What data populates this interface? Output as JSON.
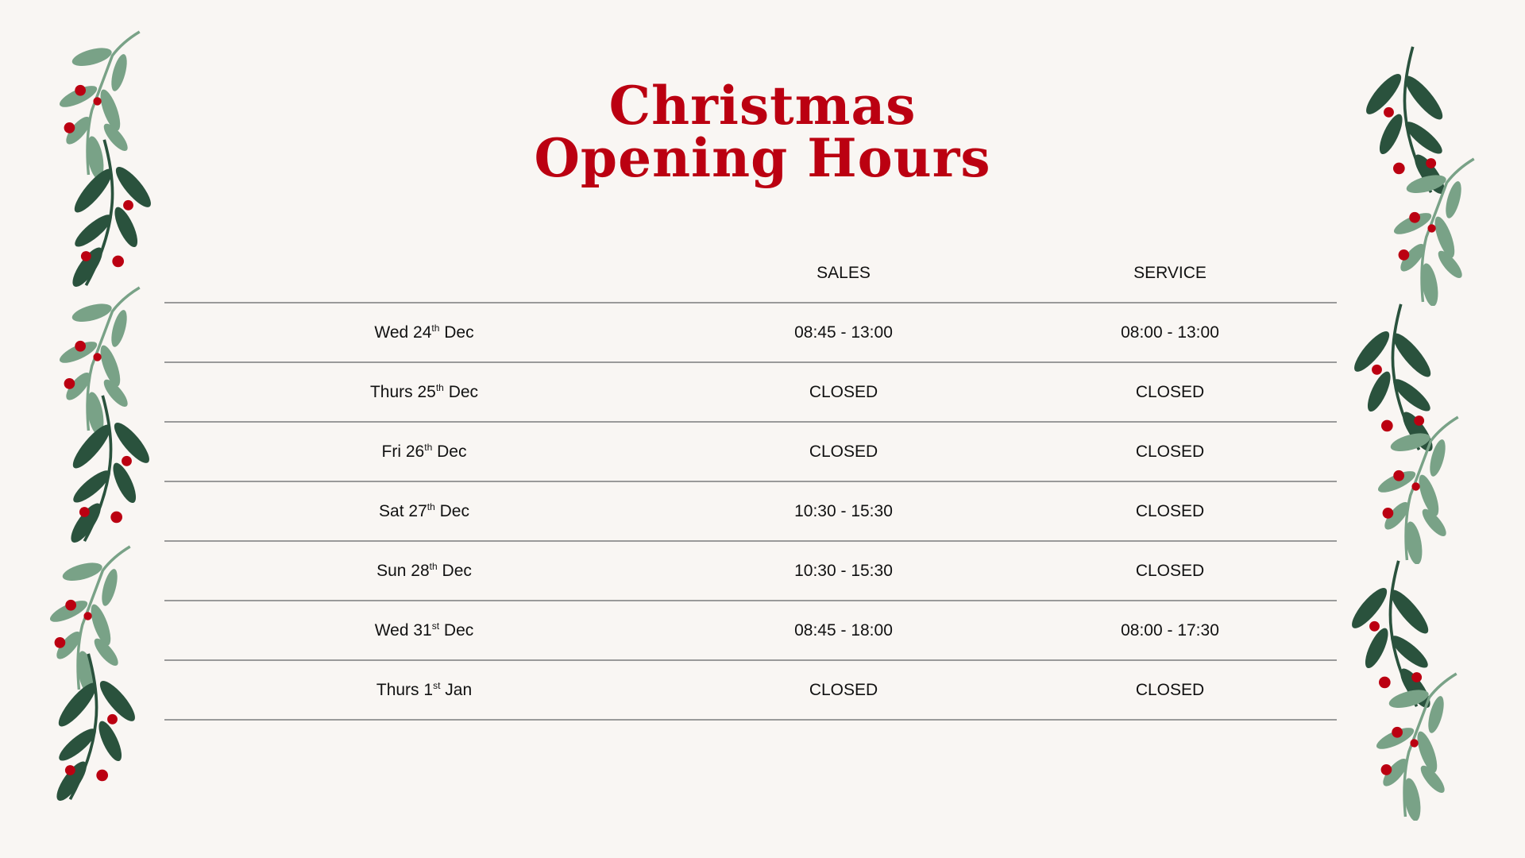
{
  "title": {
    "line1": "Christmas",
    "line2": "Opening Hours",
    "color": "#bb0011"
  },
  "table": {
    "headers": [
      "",
      "SALES",
      "SERVICE"
    ],
    "rows": [
      {
        "day": "Wed 24",
        "suffix": "th",
        "month": "Dec",
        "sales": "08:45 - 13:00",
        "service": "08:00 - 13:00"
      },
      {
        "day": "Thurs 25",
        "suffix": "th",
        "month": "Dec",
        "sales": "CLOSED",
        "service": "CLOSED"
      },
      {
        "day": "Fri 26",
        "suffix": "th",
        "month": "Dec",
        "sales": "CLOSED",
        "service": "CLOSED"
      },
      {
        "day": "Sat 27",
        "suffix": "th",
        "month": "Dec",
        "sales": "10:30 - 15:30",
        "service": "CLOSED"
      },
      {
        "day": "Sun 28",
        "suffix": "th",
        "month": "Dec",
        "sales": "10:30 - 15:30",
        "service": "CLOSED"
      },
      {
        "day": "Wed 31",
        "suffix": "st",
        "month": "Dec",
        "sales": "08:45 - 18:00",
        "service": "08:00 - 17:30"
      },
      {
        "day": "Thurs 1",
        "suffix": "st",
        "month": "Jan",
        "sales": "CLOSED",
        "service": "CLOSED"
      }
    ]
  },
  "decoration": {
    "icon": "mistletoe-sprig-icon",
    "light_leaf": "#79a287",
    "dark_leaf": "#2a523d",
    "berry": "#bb0011"
  }
}
